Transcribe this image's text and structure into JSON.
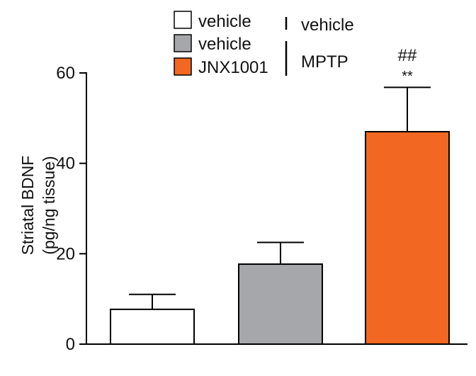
{
  "chart_data": {
    "type": "bar",
    "categories": [
      "vehicle/vehicle",
      "MPTP/vehicle",
      "MPTP/JNX1001"
    ],
    "values": [
      7.7,
      17.7,
      47.0
    ],
    "errors": [
      3.3,
      4.8,
      9.8
    ],
    "colors": [
      "#ffffff",
      "#a6a7aa",
      "#f26722"
    ],
    "ylabel_line1": "Striatal BDNF",
    "ylabel_line2": "(pg/ng tissue)",
    "ylim": [
      0,
      60
    ],
    "yticks": [
      "0",
      "20",
      "40",
      "60"
    ],
    "legend": [
      {
        "label": "vehicle",
        "color": "#ffffff"
      },
      {
        "label": "vehicle",
        "color": "#a6a7aa"
      },
      {
        "label": "JNX1001",
        "color": "#f26722"
      }
    ],
    "group_labels": [
      "vehicle",
      "MPTP"
    ],
    "annotations": {
      "hash": "##",
      "stars": "**"
    },
    "grid": false
  }
}
